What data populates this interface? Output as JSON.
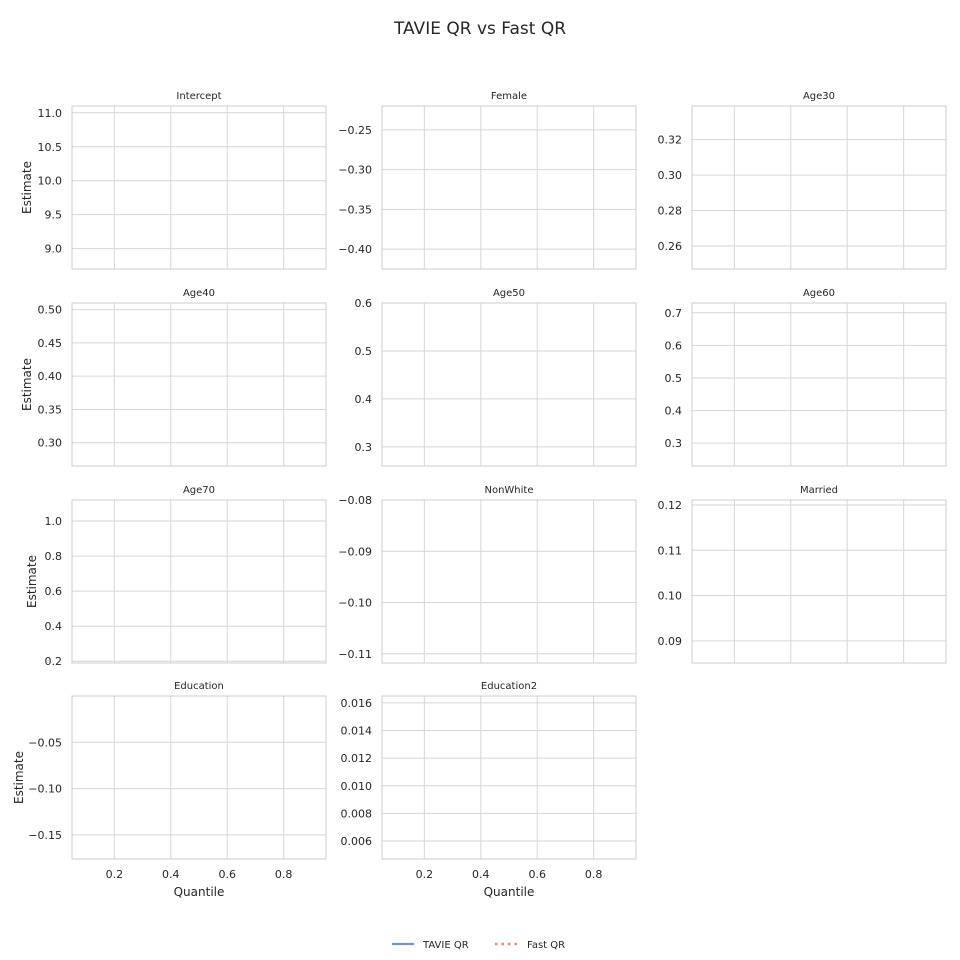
{
  "title": "TAVIE QR vs Fast QR",
  "legend": [
    {
      "label": "TAVIE QR",
      "color": "#7294d4",
      "style": "solid"
    },
    {
      "label": "Fast QR",
      "color": "#f28e5c",
      "style": "dotted"
    }
  ],
  "chart_data": {
    "type": "line",
    "layout_grid": "4x3",
    "xlabel": "Quantile",
    "ylabel": "Estimate",
    "xlim": [
      0.05,
      0.95
    ],
    "xticks": [
      "0.2",
      "0.4",
      "0.6",
      "0.8"
    ],
    "grid": true,
    "legend_position": "bottom-center",
    "panels": [
      {
        "title": "Intercept",
        "ylim": [
          8.7,
          11.1
        ],
        "yticks": [
          "9.0",
          "9.5",
          "10.0",
          "10.5",
          "11.0"
        ],
        "series": []
      },
      {
        "title": "Female",
        "ylim": [
          -0.425,
          -0.22
        ],
        "yticks": [
          "−0.40",
          "−0.35",
          "−0.30",
          "−0.25"
        ],
        "series": []
      },
      {
        "title": "Age30",
        "ylim": [
          0.247,
          0.339
        ],
        "yticks": [
          "0.26",
          "0.28",
          "0.30",
          "0.32"
        ],
        "series": []
      },
      {
        "title": "Age40",
        "ylim": [
          0.265,
          0.51
        ],
        "yticks": [
          "0.30",
          "0.35",
          "0.40",
          "0.45",
          "0.50"
        ],
        "series": []
      },
      {
        "title": "Age50",
        "ylim": [
          0.26,
          0.6
        ],
        "yticks": [
          "0.3",
          "0.4",
          "0.5",
          "0.6"
        ],
        "series": []
      },
      {
        "title": "Age60",
        "ylim": [
          0.23,
          0.73
        ],
        "yticks": [
          "0.3",
          "0.4",
          "0.5",
          "0.6",
          "0.7"
        ],
        "series": []
      },
      {
        "title": "Age70",
        "ylim": [
          0.19,
          1.12
        ],
        "yticks": [
          "0.2",
          "0.4",
          "0.6",
          "0.8",
          "1.0"
        ],
        "series": []
      },
      {
        "title": "NonWhite",
        "ylim": [
          -0.1118,
          -0.08
        ],
        "yticks": [
          "−0.11",
          "−0.10",
          "−0.09",
          "−0.08"
        ],
        "series": []
      },
      {
        "title": "Married",
        "ylim": [
          0.0851,
          0.1211
        ],
        "yticks": [
          "0.09",
          "0.10",
          "0.11",
          "0.12"
        ],
        "series": []
      },
      {
        "title": "Education",
        "ylim": [
          -0.176,
          0.0
        ],
        "yticks": [
          "−0.15",
          "−0.10",
          "−0.05"
        ],
        "series": []
      },
      {
        "title": "Education2",
        "ylim": [
          0.0047,
          0.0165
        ],
        "yticks": [
          "0.006",
          "0.008",
          "0.010",
          "0.012",
          "0.014",
          "0.016"
        ],
        "series": []
      }
    ]
  }
}
